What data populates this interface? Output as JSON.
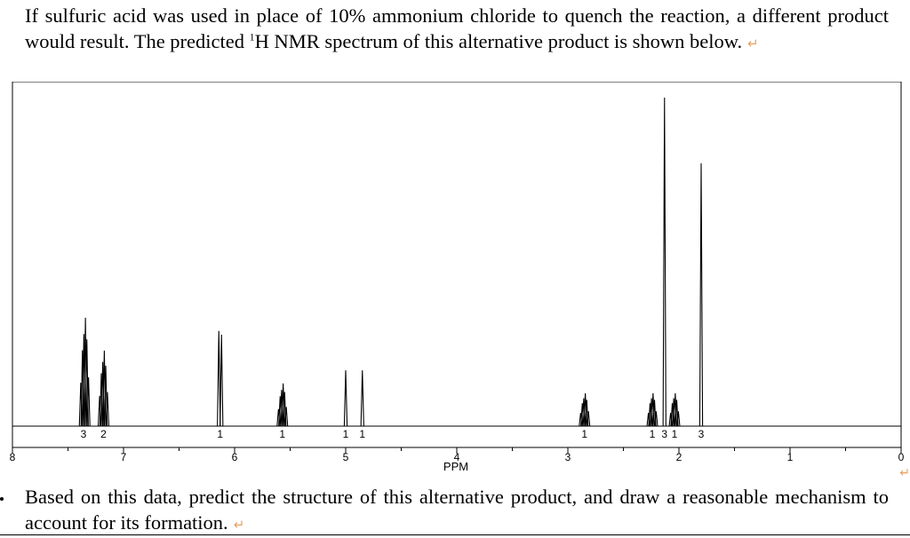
{
  "question": {
    "text_before_sup": "If sulfuric acid was used in place of 10% ammonium chloride to quench the reaction, a different product would result. The predicted ",
    "sup": "1",
    "text_after_sup": "H NMR spectrum of this alternative product is shown below.",
    "return_mark": "↵"
  },
  "prompt": {
    "text": "Based on this data, predict the structure of this alternative product, and draw a reasonable mechanism to account for its formation.",
    "return_mark": "↵"
  },
  "edge_mark": "↵",
  "chart_data": {
    "type": "line",
    "title": "",
    "xlabel": "PPM",
    "ylabel": "",
    "xlim": [
      8,
      0
    ],
    "ylim": [
      0,
      1
    ],
    "x_ticks": [
      "8",
      "7",
      "6",
      "5",
      "4",
      "3",
      "2",
      "1",
      "0"
    ],
    "axis_direction": "descending",
    "grid": false,
    "peaks": [
      {
        "shift": 7.35,
        "height": 0.33,
        "multiplicity": "m"
      },
      {
        "shift": 7.18,
        "height": 0.23,
        "multiplicity": "m"
      },
      {
        "shift": 6.13,
        "height": 0.29,
        "multiplicity": "d"
      },
      {
        "shift": 5.57,
        "height": 0.13,
        "multiplicity": "m"
      },
      {
        "shift": 5.0,
        "height": 0.17,
        "multiplicity": "s"
      },
      {
        "shift": 4.85,
        "height": 0.17,
        "multiplicity": "s"
      },
      {
        "shift": 2.85,
        "height": 0.1,
        "multiplicity": "m"
      },
      {
        "shift": 2.24,
        "height": 0.1,
        "multiplicity": "m"
      },
      {
        "shift": 2.13,
        "height": 1.0,
        "multiplicity": "s"
      },
      {
        "shift": 2.04,
        "height": 0.1,
        "multiplicity": "m"
      },
      {
        "shift": 1.8,
        "height": 0.8,
        "multiplicity": "s"
      }
    ],
    "integrations": [
      {
        "shift": 7.36,
        "label": "3"
      },
      {
        "shift": 7.18,
        "label": "2"
      },
      {
        "shift": 6.13,
        "label": "1"
      },
      {
        "shift": 5.57,
        "label": "1"
      },
      {
        "shift": 5.0,
        "label": "1"
      },
      {
        "shift": 4.85,
        "label": "1"
      },
      {
        "shift": 2.85,
        "label": "1"
      },
      {
        "shift": 2.24,
        "label": "1"
      },
      {
        "shift": 2.13,
        "label": "3"
      },
      {
        "shift": 2.04,
        "label": "1"
      },
      {
        "shift": 1.8,
        "label": "3"
      }
    ]
  }
}
